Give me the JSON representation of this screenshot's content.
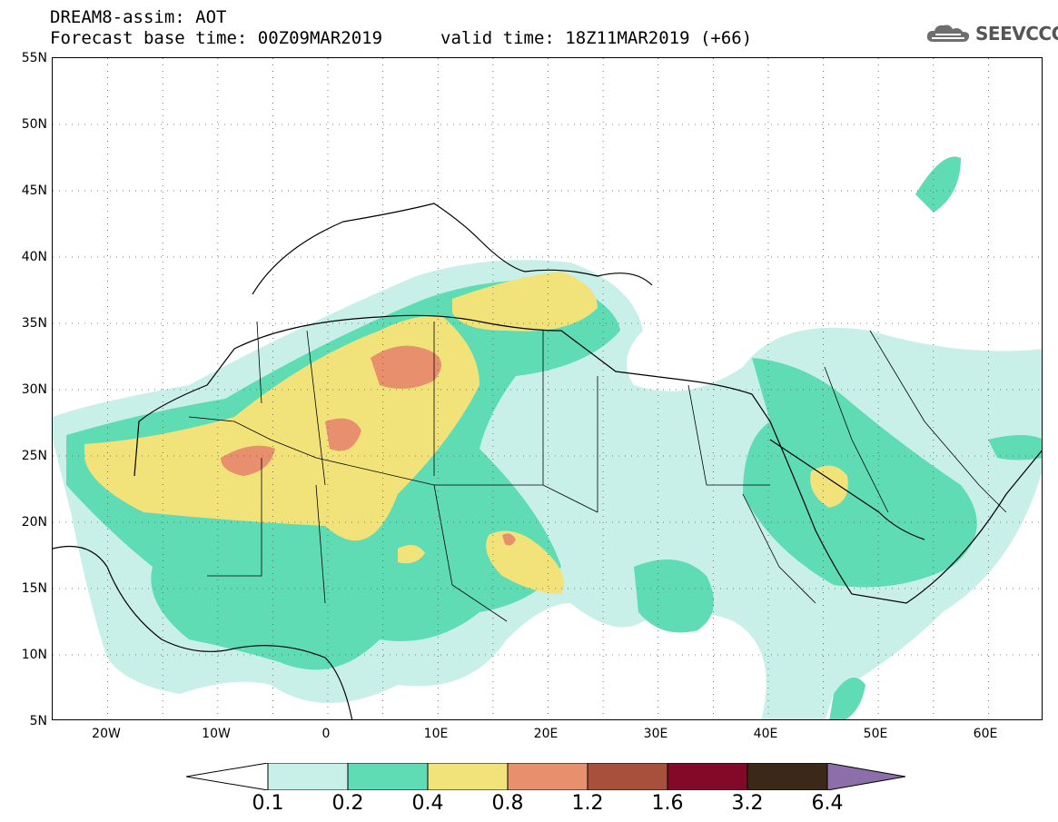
{
  "header": {
    "title": "DREAM8-assim: AOT",
    "base_time": "Forecast base time: 00Z09MAR2019",
    "valid_time": "valid time: 18Z11MAR2019 (+66)"
  },
  "logo": {
    "text": "SEEVCCC",
    "icon": "cloud-icon"
  },
  "axes": {
    "lat_labels": [
      "55N",
      "50N",
      "45N",
      "40N",
      "35N",
      "30N",
      "25N",
      "20N",
      "15N",
      "10N",
      "5N"
    ],
    "lon_labels": [
      "20W",
      "10W",
      "0",
      "10E",
      "20E",
      "30E",
      "40E",
      "50E",
      "60E"
    ]
  },
  "colorbar": {
    "levels": [
      "0.1",
      "0.2",
      "0.4",
      "0.8",
      "1.2",
      "1.6",
      "3.2",
      "6.4"
    ],
    "colors": [
      "#ffffff",
      "#c8f0e8",
      "#5fdcb4",
      "#f2e27a",
      "#e8906e",
      "#a8503c",
      "#820a28",
      "#3c2818",
      "#8c6eaa"
    ]
  },
  "map": {
    "region": "North Africa, Mediterranean, Middle East",
    "grid": "dotted",
    "lon_range": [
      -25,
      65
    ],
    "lat_range": [
      5,
      55
    ]
  }
}
